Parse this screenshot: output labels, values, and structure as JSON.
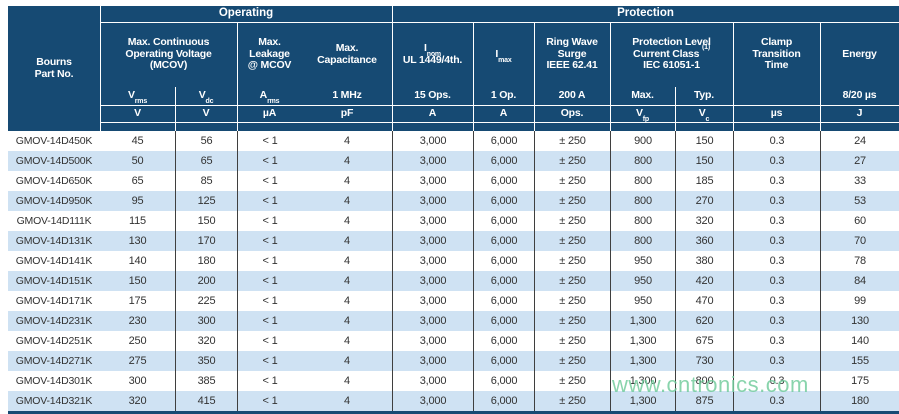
{
  "watermark": "www.cntronics.com",
  "colors": {
    "header_navy": "#164a73",
    "stripe_blue": "#cfe2f3",
    "data_text": "#323232",
    "watermark_green": "#74cd9d"
  },
  "header": {
    "part_col": {
      "line1": "Bourns",
      "line2": "Part No."
    },
    "band_operating": "Operating",
    "band_protection": "Protection",
    "groups": {
      "mcov": {
        "l1": "Max. Continuous",
        "l2": "Operating Voltage",
        "l3": "(MCOV)"
      },
      "leakage": {
        "l1": "Max.",
        "l2": "Leakage",
        "l3": "@ MCOV"
      },
      "capacitance": {
        "l1": "Max.",
        "l2": "Capacitance"
      },
      "inom": {
        "main": "I",
        "sub": "nom",
        "l2": "UL 1449/4th."
      },
      "imax": {
        "main": "I",
        "sub": "max"
      },
      "ringwave": {
        "l1": "Ring Wave",
        "l2": "Surge",
        "l3": "IEEE 62.41"
      },
      "protlevel": {
        "l1": "Protection Level",
        "l2": "Current Class ",
        "sup": "(1)",
        "l3": "IEC 61051-1"
      },
      "clamp": {
        "l1": "Clamp",
        "l2": "Transition",
        "l3": "Time"
      },
      "energy": {
        "l1": "Energy"
      }
    },
    "sub_row": {
      "vrms": {
        "main": "V",
        "sub": "rms"
      },
      "vdc": {
        "main": "V",
        "sub": "dc"
      },
      "arms": {
        "main": "A",
        "sub": "rms"
      },
      "mhz": "1 MHz",
      "ops15": "15 Ops.",
      "op1": "1 Op.",
      "a200": "200 A",
      "max": "Max.",
      "typ": "Typ.",
      "energy_cond": "8/20 µs"
    },
    "units_row": {
      "v1": "V",
      "v2": "V",
      "ua": "µA",
      "pf": "pF",
      "a1": "A",
      "a2": "A",
      "ops": "Ops.",
      "vfp": {
        "main": "V",
        "sub": "fp"
      },
      "vc": {
        "main": "V",
        "sub": "c"
      },
      "us": "µs",
      "j": "J"
    }
  },
  "rows": [
    [
      "GMOV-14D450K",
      "45",
      "56",
      "< 1",
      "4",
      "3,000",
      "6,000",
      "± 250",
      "900",
      "150",
      "0.3",
      "24"
    ],
    [
      "GMOV-14D500K",
      "50",
      "65",
      "< 1",
      "4",
      "3,000",
      "6,000",
      "± 250",
      "800",
      "150",
      "0.3",
      "27"
    ],
    [
      "GMOV-14D650K",
      "65",
      "85",
      "< 1",
      "4",
      "3,000",
      "6,000",
      "± 250",
      "800",
      "185",
      "0.3",
      "33"
    ],
    [
      "GMOV-14D950K",
      "95",
      "125",
      "< 1",
      "4",
      "3,000",
      "6,000",
      "± 250",
      "800",
      "270",
      "0.3",
      "53"
    ],
    [
      "GMOV-14D111K",
      "115",
      "150",
      "< 1",
      "4",
      "3,000",
      "6,000",
      "± 250",
      "800",
      "320",
      "0.3",
      "60"
    ],
    [
      "GMOV-14D131K",
      "130",
      "170",
      "< 1",
      "4",
      "3,000",
      "6,000",
      "± 250",
      "800",
      "360",
      "0.3",
      "70"
    ],
    [
      "GMOV-14D141K",
      "140",
      "180",
      "< 1",
      "4",
      "3,000",
      "6,000",
      "± 250",
      "950",
      "380",
      "0.3",
      "78"
    ],
    [
      "GMOV-14D151K",
      "150",
      "200",
      "< 1",
      "4",
      "3,000",
      "6,000",
      "± 250",
      "950",
      "420",
      "0.3",
      "84"
    ],
    [
      "GMOV-14D171K",
      "175",
      "225",
      "< 1",
      "4",
      "3,000",
      "6,000",
      "± 250",
      "950",
      "470",
      "0.3",
      "99"
    ],
    [
      "GMOV-14D231K",
      "230",
      "300",
      "< 1",
      "4",
      "3,000",
      "6,000",
      "± 250",
      "1,300",
      "620",
      "0.3",
      "130"
    ],
    [
      "GMOV-14D251K",
      "250",
      "320",
      "< 1",
      "4",
      "3,000",
      "6,000",
      "± 250",
      "1,300",
      "675",
      "0.3",
      "140"
    ],
    [
      "GMOV-14D271K",
      "275",
      "350",
      "< 1",
      "4",
      "3,000",
      "6,000",
      "± 250",
      "1,300",
      "730",
      "0.3",
      "155"
    ],
    [
      "GMOV-14D301K",
      "300",
      "385",
      "< 1",
      "4",
      "3,000",
      "6,000",
      "± 250",
      "1,300",
      "800",
      "0.3",
      "175"
    ],
    [
      "GMOV-14D321K",
      "320",
      "415",
      "< 1",
      "4",
      "3,000",
      "6,000",
      "± 250",
      "1,300",
      "875",
      "0.3",
      "180"
    ]
  ]
}
